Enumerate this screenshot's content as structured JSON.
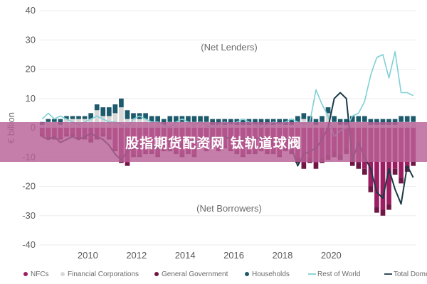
{
  "chart_data": {
    "type": "bar",
    "xlabel": "",
    "ylabel": "€ billion",
    "ylim": [
      -40,
      40
    ],
    "yticks": [
      40,
      30,
      20,
      10,
      0,
      -10,
      -20,
      -30,
      -40
    ],
    "xticks": [
      "2010",
      "2012",
      "2014",
      "2016",
      "2018",
      "2020"
    ],
    "x_start": 2008.0,
    "x_step": 0.25,
    "annotations": {
      "top": "(Net Lenders)",
      "bottom": "(Net Borrowers)"
    },
    "legend_position": "bottom",
    "series": [
      {
        "name": "NFCs",
        "kind": "bar",
        "color": "#9c1d62",
        "values": [
          -2,
          -3,
          -3,
          -3,
          -2,
          -2,
          -3,
          -3,
          -4,
          -3,
          -2,
          -3,
          -7,
          -11,
          -12,
          -9,
          -9,
          -8,
          -8,
          -9,
          -7,
          -7,
          -8,
          -9,
          -8,
          -9,
          -6,
          -7,
          -6,
          -7,
          -6,
          -7,
          -8,
          -9,
          -8,
          -8,
          -7,
          -8,
          -8,
          -9,
          -7,
          -8,
          -10,
          -12,
          -10,
          -12,
          -10,
          -9,
          -8,
          -9,
          -7,
          -11,
          -12,
          -14,
          -20,
          -27,
          -28,
          -26,
          -14,
          -17,
          -13,
          -11
        ]
      },
      {
        "name": "Financial Corporations",
        "kind": "bar",
        "color": "#d8d8d8",
        "values": [
          1,
          2,
          2,
          1,
          3,
          3,
          3,
          3,
          3,
          6,
          4,
          4,
          5,
          7,
          3,
          3,
          3,
          3,
          2,
          2,
          1,
          2,
          2,
          2,
          2,
          2,
          2,
          2,
          1,
          1,
          1,
          1,
          1,
          1,
          1,
          1,
          1,
          1,
          1,
          1,
          1,
          1,
          2,
          3,
          2,
          1,
          2,
          5,
          2,
          1,
          1,
          2,
          2,
          2,
          1,
          1,
          1,
          1,
          1,
          2,
          2,
          2
        ]
      },
      {
        "name": "General Government",
        "kind": "bar",
        "color": "#6e1745",
        "values": [
          -1,
          -1,
          -1,
          -1,
          -1,
          -1,
          -1,
          -1,
          -1,
          -1,
          -1,
          -1,
          -1,
          -1,
          -1,
          -1,
          -1,
          -1,
          -1,
          -1,
          -1,
          -1,
          -1,
          -1,
          -1,
          -1,
          -1,
          -1,
          -1,
          -1,
          -1,
          -1,
          -1,
          -1,
          -1,
          -1,
          -1,
          -1,
          -1,
          -1,
          -1,
          -1,
          -2,
          -2,
          -2,
          -2,
          -2,
          -2,
          -2,
          -2,
          -2,
          -2,
          -2,
          -2,
          -2,
          -2,
          -2,
          -2,
          -2,
          -2,
          -2,
          -2
        ]
      },
      {
        "name": "Households",
        "kind": "bar",
        "color": "#1d5a6b",
        "values": [
          1,
          1,
          1,
          2,
          1,
          1,
          1,
          1,
          2,
          2,
          3,
          3,
          3,
          3,
          3,
          2,
          2,
          2,
          2,
          2,
          2,
          2,
          2,
          2,
          2,
          2,
          2,
          2,
          2,
          2,
          2,
          2,
          2,
          2,
          2,
          2,
          2,
          2,
          2,
          2,
          2,
          2,
          2,
          2,
          2,
          2,
          2,
          2,
          2,
          2,
          2,
          2,
          2,
          2,
          2,
          2,
          2,
          2,
          2,
          2,
          2,
          2
        ]
      },
      {
        "name": "Rest of World",
        "kind": "line",
        "color": "#7fd0d6",
        "values": [
          3,
          5,
          3,
          4,
          3,
          2,
          1,
          2,
          3,
          4,
          3,
          2,
          2,
          1,
          0,
          3,
          4,
          3,
          2,
          2,
          1,
          0,
          2,
          3,
          2,
          1,
          2,
          1,
          0,
          1,
          2,
          1,
          2,
          3,
          2,
          1,
          0,
          1,
          2,
          1,
          2,
          3,
          2,
          1,
          2,
          13,
          8,
          4,
          -3,
          -1,
          0,
          4,
          5,
          9,
          18,
          24,
          25,
          17,
          26,
          12,
          12,
          11
        ]
      },
      {
        "name": "Total Domestic",
        "kind": "line",
        "color": "#1a3a47",
        "values": [
          -3,
          -4,
          -3,
          -5,
          -4,
          -3,
          -4,
          -3,
          -2,
          -3,
          -4,
          -6,
          -9,
          -11,
          -8,
          -7,
          -6,
          -5,
          -6,
          -7,
          -5,
          -4,
          -5,
          -6,
          -5,
          -4,
          -5,
          -4,
          -3,
          -4,
          -3,
          -4,
          -5,
          -4,
          -3,
          -4,
          -3,
          -4,
          -5,
          -4,
          -3,
          -7,
          -13,
          -9,
          -8,
          -7,
          -4,
          0,
          10,
          12,
          10,
          -11,
          -5,
          -10,
          -14,
          -22,
          -24,
          -14,
          -21,
          -26,
          -13,
          -17
        ]
      }
    ]
  },
  "banner_text": "股指期货配资网 钛轨道球阀"
}
